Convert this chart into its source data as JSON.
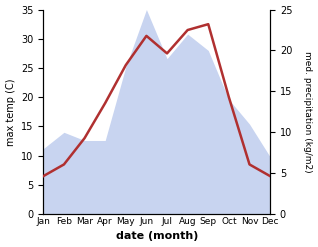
{
  "months": [
    "Jan",
    "Feb",
    "Mar",
    "Apr",
    "May",
    "Jun",
    "Jul",
    "Aug",
    "Sep",
    "Oct",
    "Nov",
    "Dec"
  ],
  "max_temp": [
    6.5,
    8.5,
    13.0,
    19.0,
    25.5,
    30.5,
    27.5,
    31.5,
    32.5,
    20.0,
    8.5,
    6.5
  ],
  "precipitation": [
    8,
    10,
    9,
    9,
    18,
    25,
    19,
    22,
    20,
    14,
    11,
    7
  ],
  "temp_color": "#b03030",
  "precip_fill_color": "#c8d4f0",
  "left_ylabel": "max temp (C)",
  "right_ylabel": "med. precipitation (kg/m2)",
  "xlabel": "date (month)",
  "ylim_temp": [
    0,
    35
  ],
  "ylim_precip": [
    0,
    25
  ],
  "temp_yticks": [
    0,
    5,
    10,
    15,
    20,
    25,
    30,
    35
  ],
  "precip_yticks": [
    0,
    5,
    10,
    15,
    20,
    25
  ],
  "fig_width": 3.18,
  "fig_height": 2.47,
  "dpi": 100
}
